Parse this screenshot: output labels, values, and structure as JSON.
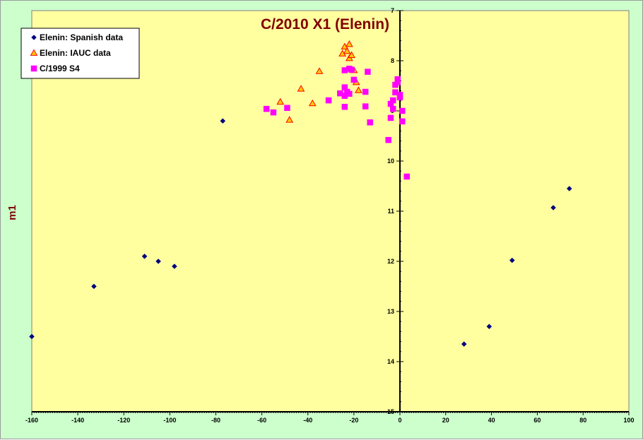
{
  "chart_data": {
    "type": "scatter",
    "title": "C/2010 X1 (Elenin)",
    "xlabel": "",
    "ylabel": "m1",
    "xlim": [
      -160,
      100
    ],
    "ylim": [
      15,
      7
    ],
    "y_inverted": true,
    "x_ticks": [
      -160,
      -140,
      -120,
      -100,
      -80,
      -60,
      -40,
      -20,
      0,
      20,
      40,
      60,
      80,
      100
    ],
    "y_ticks": [
      7,
      8,
      9,
      10,
      11,
      12,
      13,
      14,
      15
    ],
    "grid": false,
    "legend_position": "top-left",
    "colors": {
      "plot_background": "#ffffa0",
      "chart_background": "#ccffcc",
      "title": "#800000",
      "axis_label": "#800000"
    },
    "series": [
      {
        "name": "Elenin: Spanish data",
        "marker": "diamond",
        "color": "#000080",
        "points": [
          [
            -160,
            13.5
          ],
          [
            -133,
            12.5
          ],
          [
            -111,
            11.9
          ],
          [
            -105,
            12.0
          ],
          [
            -98,
            12.1
          ],
          [
            -77,
            9.2
          ],
          [
            28,
            13.65
          ],
          [
            39,
            13.3
          ],
          [
            49,
            11.98
          ],
          [
            67,
            10.93
          ],
          [
            74,
            10.55
          ]
        ]
      },
      {
        "name": "Elenin: IAUC data",
        "marker": "triangle",
        "color": "#ff0000",
        "fill": "#ffcc00",
        "points": [
          [
            -52,
            8.82
          ],
          [
            -48,
            9.18
          ],
          [
            -43,
            8.56
          ],
          [
            -38,
            8.85
          ],
          [
            -35,
            8.21
          ],
          [
            -25,
            7.86
          ],
          [
            -24,
            7.72
          ],
          [
            -23,
            7.81
          ],
          [
            -22,
            7.67
          ],
          [
            -22,
            7.95
          ],
          [
            -21,
            7.89
          ],
          [
            -20,
            8.19
          ],
          [
            -19,
            8.43
          ],
          [
            -18,
            8.59
          ]
        ]
      },
      {
        "name": "C/1999 S4",
        "marker": "square",
        "color": "#ff00ff",
        "points": [
          [
            -58,
            8.96
          ],
          [
            -55,
            9.03
          ],
          [
            -49,
            8.94
          ],
          [
            -31,
            8.79
          ],
          [
            -26,
            8.65
          ],
          [
            -24,
            8.19
          ],
          [
            -24,
            8.53
          ],
          [
            -24,
            8.7
          ],
          [
            -24,
            8.92
          ],
          [
            -23,
            8.62
          ],
          [
            -22,
            8.66
          ],
          [
            -22,
            8.16
          ],
          [
            -21,
            8.18
          ],
          [
            -20,
            8.38
          ],
          [
            -15,
            8.62
          ],
          [
            -15,
            8.91
          ],
          [
            -14,
            8.22
          ],
          [
            -13,
            9.23
          ],
          [
            -5,
            9.58
          ],
          [
            -4,
            9.14
          ],
          [
            -4,
            8.86
          ],
          [
            -3,
            8.96
          ],
          [
            -3,
            8.79
          ],
          [
            -2,
            8.63
          ],
          [
            -2,
            8.48
          ],
          [
            -1,
            8.43
          ],
          [
            -1,
            8.37
          ],
          [
            0,
            8.73
          ],
          [
            0,
            8.68
          ],
          [
            1,
            9.0
          ],
          [
            1,
            9.21
          ],
          [
            3,
            10.31
          ]
        ]
      }
    ]
  }
}
